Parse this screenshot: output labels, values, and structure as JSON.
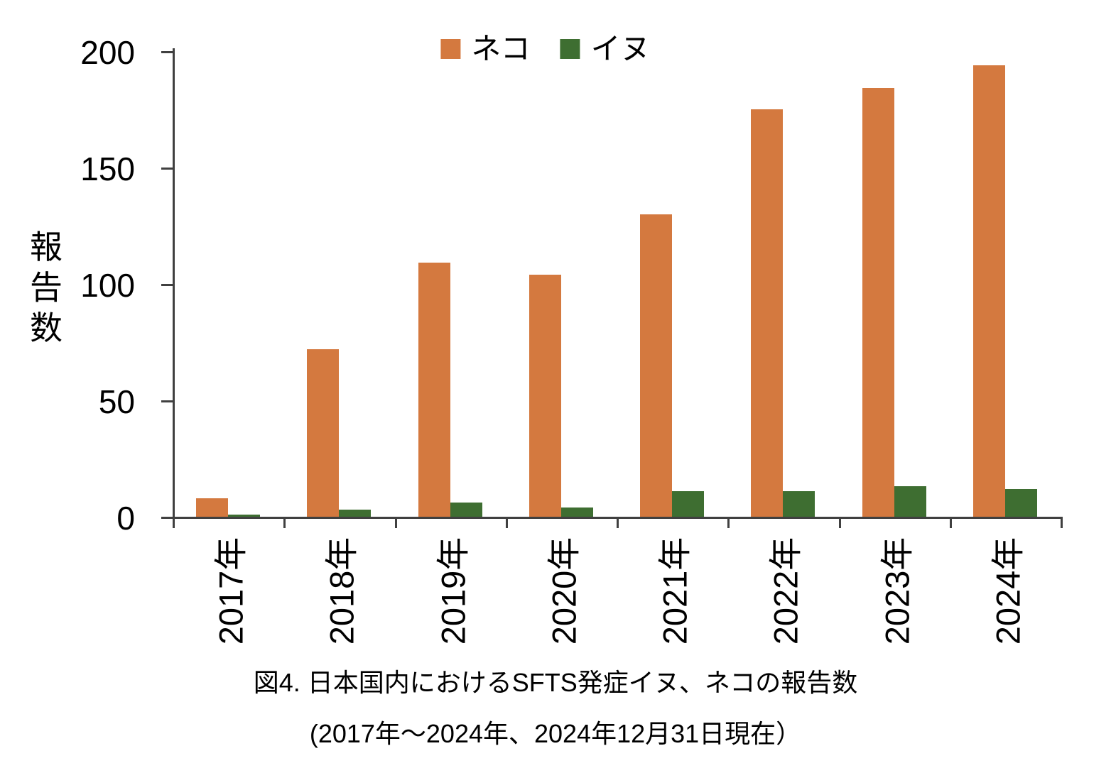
{
  "chart_data": {
    "type": "bar",
    "title": "図4. 日本国内におけるSFTS発症イヌ、ネコの報告数",
    "subtitle": "(2017年〜2024年、2024年12月31日現在）",
    "ylabel": "報告数",
    "ylim": [
      0,
      200
    ],
    "yticks": [
      0,
      50,
      100,
      150,
      200
    ],
    "categories": [
      "2017年",
      "2018年",
      "2019年",
      "2020年",
      "2021年",
      "2022年",
      "2023年",
      "2024年"
    ],
    "series": [
      {
        "name": "ネコ",
        "color": "#d4793f",
        "values": [
          8,
          72,
          109,
          104,
          130,
          175,
          184,
          194
        ]
      },
      {
        "name": "イヌ",
        "color": "#3e6e31",
        "values": [
          1,
          3,
          6,
          4,
          11,
          11,
          13,
          12
        ]
      }
    ],
    "legend_position": "top-center",
    "grid": false,
    "axis_color": "#404040",
    "background": "#ffffff"
  }
}
